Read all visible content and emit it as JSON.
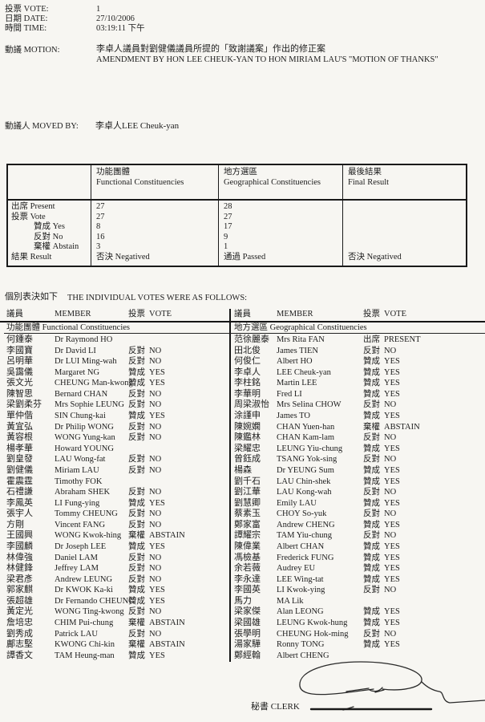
{
  "colors": {
    "paper": "#f7f6f2",
    "ink": "#1d1d1d"
  },
  "page": {
    "meta_rows": [
      {
        "label": "投票 VOTE:",
        "value": "1"
      },
      {
        "label": "日期 DATE:",
        "value": "27/10/2006"
      },
      {
        "label": "時間 TIME:",
        "value": "03:19:11 下午"
      }
    ],
    "motion": {
      "label": "動議 MOTION:",
      "line_zh": "李卓人議員對劉健儀議員所提的「致謝議案」作出的修正案",
      "line_en": "AMENDMENT BY HON LEE CHEUK-YAN TO HON MIRIAM LAU'S \"MOTION OF THANKS\""
    },
    "moved_by": {
      "label": "動議人 MOVED BY:",
      "value": "李卓人LEE Cheuk-yan"
    }
  },
  "summary_table": {
    "col_headers": [
      {
        "zh": "功能團體",
        "en": "Functional Constituencies"
      },
      {
        "zh": "地方選區",
        "en": "Geographical Constituencies"
      },
      {
        "zh": "最後結果",
        "en": "Final Result"
      }
    ],
    "rows": [
      {
        "label": "出席 Present",
        "indent": false,
        "fc": "27",
        "gc": "28",
        "final": ""
      },
      {
        "label": "投票 Vote",
        "indent": false,
        "fc": "27",
        "gc": "27",
        "final": ""
      },
      {
        "label": "贊成 Yes",
        "indent": true,
        "fc": "8",
        "gc": "17",
        "final": ""
      },
      {
        "label": "反對 No",
        "indent": true,
        "fc": "16",
        "gc": "9",
        "final": ""
      },
      {
        "label": "棄權 Abstain",
        "indent": true,
        "fc": "3",
        "gc": "1",
        "final": ""
      },
      {
        "label": "結果 Result",
        "indent": false,
        "fc": "否決 Negatived",
        "gc": "通過 Passed",
        "final": "否決 Negatived"
      }
    ]
  },
  "individual_votes": {
    "heading_zh": "個別表決如下",
    "heading_en": "THE INDIVIDUAL VOTES WERE AS FOLLOWS:",
    "header": {
      "member_zh": "議員",
      "member_en": "MEMBER",
      "vote_zh": "投票",
      "vote_en": "VOTE"
    },
    "left": {
      "subheader": "功能團體 Functional Constituencies",
      "rows": [
        [
          "何鍾泰",
          "Dr Raymond HO",
          "",
          ""
        ],
        [
          "李國寶",
          "Dr David LI",
          "反對",
          "NO"
        ],
        [
          "呂明華",
          "Dr LUI Ming-wah",
          "反對",
          "NO"
        ],
        [
          "吳靄儀",
          "Margaret NG",
          "贊成",
          "YES"
        ],
        [
          "張文光",
          "CHEUNG Man-kwong",
          "贊成",
          "YES"
        ],
        [
          "陳智思",
          "Bernard CHAN",
          "反對",
          "NO"
        ],
        [
          "梁劉柔芬",
          "Mrs Sophie LEUNG",
          "反對",
          "NO"
        ],
        [
          "單仲偕",
          "SIN Chung-kai",
          "贊成",
          "YES"
        ],
        [
          "黃宜弘",
          "Dr Philip WONG",
          "反對",
          "NO"
        ],
        [
          "黃容根",
          "WONG Yung-kan",
          "反對",
          "NO"
        ],
        [
          "楊孝華",
          "Howard YOUNG",
          "",
          ""
        ],
        [
          "劉皇發",
          "LAU Wong-fat",
          "反對",
          "NO"
        ],
        [
          "劉健儀",
          "Miriam LAU",
          "反對",
          "NO"
        ],
        [
          "霍震霆",
          "Timothy FOK",
          "",
          ""
        ],
        [
          "石禮謙",
          "Abraham SHEK",
          "反對",
          "NO"
        ],
        [
          "李鳳英",
          "LI Fung-ying",
          "贊成",
          "YES"
        ],
        [
          "張宇人",
          "Tommy CHEUNG",
          "反對",
          "NO"
        ],
        [
          "方剛",
          "Vincent FANG",
          "反對",
          "NO"
        ],
        [
          "王國興",
          "WONG Kwok-hing",
          "棄權",
          "ABSTAIN"
        ],
        [
          "李國麟",
          "Dr Joseph LEE",
          "贊成",
          "YES"
        ],
        [
          "林偉強",
          "Daniel LAM",
          "反對",
          "NO"
        ],
        [
          "林健鋒",
          "Jeffrey LAM",
          "反對",
          "NO"
        ],
        [
          "梁君彥",
          "Andrew LEUNG",
          "反對",
          "NO"
        ],
        [
          "郭家麒",
          "Dr KWOK Ka-ki",
          "贊成",
          "YES"
        ],
        [
          "張超雄",
          "Dr Fernando CHEUNG",
          "贊成",
          "YES"
        ],
        [
          "黃定光",
          "WONG Ting-kwong",
          "反對",
          "NO"
        ],
        [
          "詹培忠",
          "CHIM Pui-chung",
          "棄權",
          "ABSTAIN"
        ],
        [
          "劉秀成",
          "Patrick LAU",
          "反對",
          "NO"
        ],
        [
          "鄺志堅",
          "KWONG Chi-kin",
          "棄權",
          "ABSTAIN"
        ],
        [
          "譚香文",
          "TAM Heung-man",
          "贊成",
          "YES"
        ]
      ]
    },
    "right": {
      "subheader": "地方選區 Geographical Constituencies",
      "rows": [
        [
          "范徐麗泰",
          "Mrs Rita FAN",
          "出席",
          "PRESENT"
        ],
        [
          "田北俊",
          "James TIEN",
          "反對",
          "NO"
        ],
        [
          "何俊仁",
          "Albert HO",
          "贊成",
          "YES"
        ],
        [
          "李卓人",
          "LEE Cheuk-yan",
          "贊成",
          "YES"
        ],
        [
          "李柱銘",
          "Martin LEE",
          "贊成",
          "YES"
        ],
        [
          "李華明",
          "Fred LI",
          "贊成",
          "YES"
        ],
        [
          "周梁淑怡",
          "Mrs Selina CHOW",
          "反對",
          "NO"
        ],
        [
          "涂謹申",
          "James TO",
          "贊成",
          "YES"
        ],
        [
          "陳婉嫻",
          "CHAN Yuen-han",
          "棄權",
          "ABSTAIN"
        ],
        [
          "陳鑑林",
          "CHAN Kam-lam",
          "反對",
          "NO"
        ],
        [
          "梁耀忠",
          "LEUNG Yiu-chung",
          "贊成",
          "YES"
        ],
        [
          "曾鈺成",
          "TSANG Yok-sing",
          "反對",
          "NO"
        ],
        [
          "楊森",
          "Dr YEUNG Sum",
          "贊成",
          "YES"
        ],
        [
          "劉千石",
          "LAU Chin-shek",
          "贊成",
          "YES"
        ],
        [
          "劉江華",
          "LAU Kong-wah",
          "反對",
          "NO"
        ],
        [
          "劉慧卿",
          "Emily LAU",
          "贊成",
          "YES"
        ],
        [
          "蔡素玉",
          "CHOY So-yuk",
          "反對",
          "NO"
        ],
        [
          "鄭家富",
          "Andrew CHENG",
          "贊成",
          "YES"
        ],
        [
          "譚耀宗",
          "TAM Yiu-chung",
          "反對",
          "NO"
        ],
        [
          "陳偉業",
          "Albert CHAN",
          "贊成",
          "YES"
        ],
        [
          "馮檢基",
          "Frederick FUNG",
          "贊成",
          "YES"
        ],
        [
          "余若薇",
          "Audrey EU",
          "贊成",
          "YES"
        ],
        [
          "李永達",
          "LEE Wing-tat",
          "贊成",
          "YES"
        ],
        [
          "李國英",
          "LI Kwok-ying",
          "反對",
          "NO"
        ],
        [
          "馬力",
          "MA Lik",
          "",
          ""
        ],
        [
          "梁家傑",
          "Alan LEONG",
          "贊成",
          "YES"
        ],
        [
          "梁國雄",
          "LEUNG Kwok-hung",
          "贊成",
          "YES"
        ],
        [
          "張學明",
          "CHEUNG Hok-ming",
          "反對",
          "NO"
        ],
        [
          "湯家驊",
          "Ronny TONG",
          "贊成",
          "YES"
        ],
        [
          "鄭經翰",
          "Albert CHENG",
          "",
          ""
        ]
      ]
    }
  },
  "footer": {
    "clerk_label": "秘書 CLERK",
    "signature_icon": "signature-scribble"
  }
}
